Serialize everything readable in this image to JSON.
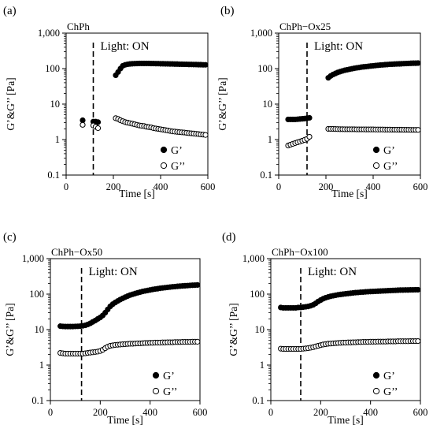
{
  "panels": [
    {
      "letter": "(a)",
      "sample": "ChPh",
      "annotation": "Light: ON",
      "chart_data": {
        "type": "scatter",
        "title": "ChPh",
        "xlabel": "Time [s]",
        "ylabel": "G’&G’’ [Pa]",
        "xlim": [
          0,
          600
        ],
        "ylim": [
          0.1,
          1000
        ],
        "yscale": "log",
        "grid": false,
        "legend_position": "bottom-right",
        "light_on_time": 115,
        "x_ticks": [
          "0",
          "200",
          "400",
          "600"
        ],
        "y_ticks": [
          "0.1",
          "1",
          "10",
          "100",
          "1,000"
        ],
        "series": [
          {
            "name": "G’",
            "marker": "filled",
            "x": [
              70,
              115,
              125,
              135,
              210,
              220,
              230,
              240,
              250,
              260,
              270,
              280,
              290,
              300,
              310,
              320,
              330,
              340,
              350,
              360,
              370,
              380,
              390,
              400,
              410,
              420,
              430,
              440,
              450,
              460,
              470,
              480,
              490,
              500,
              510,
              520,
              530,
              540,
              550,
              560,
              570,
              580,
              590
            ],
            "y": [
              3.5,
              3.2,
              3.2,
              3.1,
              65,
              80,
              100,
              120,
              128,
              132,
              135,
              137,
              138,
              139,
              140,
              140,
              140,
              140,
              140,
              139,
              139,
              138,
              138,
              137,
              137,
              136,
              136,
              135,
              135,
              134,
              134,
              133,
              133,
              132,
              132,
              131,
              131,
              130,
              130,
              129,
              129,
              128,
              128
            ]
          },
          {
            "name": "G’’",
            "marker": "open",
            "x": [
              70,
              115,
              125,
              135,
              210,
              220,
              230,
              240,
              250,
              260,
              270,
              280,
              290,
              300,
              310,
              320,
              330,
              340,
              350,
              360,
              370,
              380,
              390,
              400,
              410,
              420,
              430,
              440,
              450,
              460,
              470,
              480,
              490,
              500,
              510,
              520,
              530,
              540,
              550,
              560,
              570,
              580,
              590
            ],
            "y": [
              2.6,
              2.5,
              2.3,
              2.1,
              4.0,
              3.8,
              3.5,
              3.3,
              3.1,
              3.0,
              2.9,
              2.8,
              2.7,
              2.6,
              2.5,
              2.45,
              2.4,
              2.3,
              2.25,
              2.2,
              2.1,
              2.05,
              2.0,
              1.95,
              1.9,
              1.85,
              1.8,
              1.75,
              1.7,
              1.68,
              1.65,
              1.62,
              1.6,
              1.58,
              1.55,
              1.52,
              1.5,
              1.48,
              1.45,
              1.43,
              1.4,
              1.38,
              1.35
            ]
          }
        ]
      }
    },
    {
      "letter": "(b)",
      "sample": "ChPh−Ox25",
      "annotation": "Light: ON",
      "chart_data": {
        "type": "scatter",
        "title": "ChPh−Ox25",
        "xlabel": "Time [s]",
        "ylabel": "G’&G’’ [Pa]",
        "xlim": [
          0,
          600
        ],
        "ylim": [
          0.1,
          1000
        ],
        "yscale": "log",
        "grid": false,
        "legend_position": "bottom-right",
        "light_on_time": 120,
        "x_ticks": [
          "0",
          "200",
          "400",
          "600"
        ],
        "y_ticks": [
          "0.1",
          "1",
          "10",
          "100",
          "1,000"
        ],
        "series": [
          {
            "name": "G’",
            "marker": "filled",
            "x": [
              40,
              50,
              60,
              70,
              80,
              90,
              100,
              110,
              120,
              130,
              210,
              220,
              230,
              240,
              250,
              260,
              270,
              280,
              290,
              300,
              310,
              320,
              330,
              340,
              350,
              360,
              370,
              380,
              390,
              400,
              410,
              420,
              430,
              440,
              450,
              460,
              470,
              480,
              490,
              500,
              510,
              520,
              530,
              540,
              550,
              560,
              570,
              580,
              590
            ],
            "y": [
              3.7,
              3.7,
              3.7,
              3.7,
              3.75,
              3.8,
              3.85,
              3.9,
              4.0,
              4.1,
              55,
              62,
              68,
              73,
              78,
              82,
              86,
              90,
              93,
              96,
              99,
              102,
              105,
              107,
              110,
              112,
              114,
              116,
              118,
              120,
              122,
              124,
              126,
              127,
              129,
              130,
              132,
              133,
              134,
              135,
              136,
              137,
              138,
              139,
              140,
              141,
              142,
              142,
              143
            ]
          },
          {
            "name": "G’’",
            "marker": "open",
            "x": [
              40,
              50,
              60,
              70,
              80,
              90,
              100,
              110,
              120,
              130,
              210,
              220,
              230,
              240,
              250,
              260,
              270,
              280,
              290,
              300,
              310,
              320,
              330,
              340,
              350,
              360,
              370,
              380,
              390,
              400,
              410,
              420,
              430,
              440,
              450,
              460,
              470,
              480,
              490,
              500,
              510,
              520,
              530,
              540,
              550,
              560,
              570,
              580,
              590
            ],
            "y": [
              0.68,
              0.72,
              0.76,
              0.8,
              0.84,
              0.88,
              0.93,
              0.98,
              1.05,
              1.2,
              2.0,
              2.0,
              2.0,
              1.98,
              1.97,
              1.96,
              1.96,
              1.95,
              1.95,
              1.95,
              1.95,
              1.95,
              1.94,
              1.94,
              1.94,
              1.94,
              1.93,
              1.93,
              1.93,
              1.93,
              1.92,
              1.92,
              1.92,
              1.92,
              1.91,
              1.91,
              1.91,
              1.9,
              1.9,
              1.9,
              1.9,
              1.9,
              1.89,
              1.89,
              1.89,
              1.88,
              1.88,
              1.88,
              1.88
            ]
          }
        ]
      }
    },
    {
      "letter": "(c)",
      "sample": "ChPh−Ox50",
      "annotation": "Light: ON",
      "chart_data": {
        "type": "scatter",
        "title": "ChPh−Ox50",
        "xlabel": "Time [s]",
        "ylabel": "G’&G’’ [Pa]",
        "xlim": [
          0,
          600
        ],
        "ylim": [
          0.1,
          1000
        ],
        "yscale": "log",
        "grid": false,
        "legend_position": "bottom-right",
        "light_on_time": 125,
        "x_ticks": [
          "0",
          "200",
          "400",
          "600"
        ],
        "y_ticks": [
          "0.1",
          "1",
          "10",
          "100",
          "1,000"
        ],
        "series": [
          {
            "name": "G’",
            "marker": "filled",
            "x": [
              40,
              50,
              60,
              70,
              80,
              90,
              100,
              110,
              120,
              130,
              140,
              150,
              160,
              170,
              180,
              190,
              200,
              210,
              220,
              230,
              240,
              250,
              260,
              270,
              280,
              290,
              300,
              310,
              320,
              330,
              340,
              350,
              360,
              370,
              380,
              390,
              400,
              410,
              420,
              430,
              440,
              450,
              460,
              470,
              480,
              490,
              500,
              510,
              520,
              530,
              540,
              550,
              560,
              570,
              580,
              590
            ],
            "y": [
              12.5,
              12.3,
              12.2,
              12.2,
              12.2,
              12.2,
              12.3,
              12.4,
              12.5,
              12.8,
              13.2,
              14,
              15,
              16.5,
              18,
              20,
              22,
              25,
              30,
              37,
              45,
              52,
              58,
              64,
              70,
              76,
              82,
              88,
              94,
              99,
              104,
              109,
              114,
              119,
              123,
              127,
              131,
              135,
              139,
              142,
              146,
              149,
              152,
              155,
              158,
              161,
              163,
              166,
              168,
              170,
              172,
              174,
              176,
              178,
              179,
              181
            ]
          },
          {
            "name": "G’’",
            "marker": "open",
            "x": [
              40,
              50,
              60,
              70,
              80,
              90,
              100,
              110,
              120,
              130,
              140,
              150,
              160,
              170,
              180,
              190,
              200,
              210,
              220,
              230,
              240,
              250,
              260,
              270,
              280,
              290,
              300,
              310,
              320,
              330,
              340,
              350,
              360,
              370,
              380,
              390,
              400,
              410,
              420,
              430,
              440,
              450,
              460,
              470,
              480,
              490,
              500,
              510,
              520,
              530,
              540,
              550,
              560,
              570,
              580,
              590
            ],
            "y": [
              2.2,
              2.15,
              2.1,
              2.1,
              2.1,
              2.1,
              2.1,
              2.1,
              2.1,
              2.1,
              2.15,
              2.2,
              2.25,
              2.3,
              2.35,
              2.4,
              2.5,
              2.7,
              3.0,
              3.3,
              3.5,
              3.6,
              3.7,
              3.75,
              3.8,
              3.85,
              3.9,
              3.95,
              4.0,
              4.0,
              4.05,
              4.1,
              4.1,
              4.15,
              4.2,
              4.2,
              4.25,
              4.25,
              4.3,
              4.3,
              4.3,
              4.35,
              4.35,
              4.4,
              4.4,
              4.4,
              4.45,
              4.45,
              4.45,
              4.5,
              4.5,
              4.5,
              4.5,
              4.55,
              4.55,
              4.55
            ]
          }
        ]
      }
    },
    {
      "letter": "(d)",
      "sample": "ChPh−Ox100",
      "annotation": "Light: ON",
      "chart_data": {
        "type": "scatter",
        "title": "ChPh−Ox100",
        "xlabel": "Time [s]",
        "ylabel": "G’&G’’ [Pa]",
        "xlim": [
          0,
          600
        ],
        "ylim": [
          0.1,
          1000
        ],
        "yscale": "log",
        "grid": false,
        "legend_position": "bottom-right",
        "light_on_time": 120,
        "x_ticks": [
          "0",
          "200",
          "400",
          "600"
        ],
        "y_ticks": [
          "0.1",
          "1",
          "10",
          "100",
          "1,000"
        ],
        "series": [
          {
            "name": "G’",
            "marker": "filled",
            "x": [
              40,
              50,
              60,
              70,
              80,
              90,
              100,
              110,
              120,
              130,
              140,
              150,
              160,
              170,
              180,
              190,
              200,
              210,
              220,
              230,
              240,
              250,
              260,
              270,
              280,
              290,
              300,
              310,
              320,
              330,
              340,
              350,
              360,
              370,
              380,
              390,
              400,
              410,
              420,
              430,
              440,
              450,
              460,
              470,
              480,
              490,
              500,
              510,
              520,
              530,
              540,
              550,
              560,
              570,
              580,
              590
            ],
            "y": [
              42,
              41,
              41,
              41,
              41,
              41,
              41,
              42,
              42,
              43,
              44,
              45,
              47,
              50,
              55,
              62,
              68,
              74,
              79,
              83,
              87,
              90,
              93,
              96,
              98,
              100,
              102,
              104,
              106,
              108,
              110,
              111,
              113,
              114,
              116,
              117,
              118,
              119,
              120,
              121,
              122,
              123,
              124,
              125,
              126,
              127,
              128,
              129,
              130,
              130,
              131,
              131,
              132,
              132,
              133,
              133
            ]
          },
          {
            "name": "G’’",
            "marker": "open",
            "x": [
              40,
              50,
              60,
              70,
              80,
              90,
              100,
              110,
              120,
              130,
              140,
              150,
              160,
              170,
              180,
              190,
              200,
              210,
              220,
              230,
              240,
              250,
              260,
              270,
              280,
              290,
              300,
              310,
              320,
              330,
              340,
              350,
              360,
              370,
              380,
              390,
              400,
              410,
              420,
              430,
              440,
              450,
              460,
              470,
              480,
              490,
              500,
              510,
              520,
              530,
              540,
              550,
              560,
              570,
              580,
              590
            ],
            "y": [
              2.9,
              2.85,
              2.85,
              2.85,
              2.85,
              2.85,
              2.85,
              2.85,
              2.85,
              2.9,
              2.95,
              3.0,
              3.1,
              3.2,
              3.35,
              3.5,
              3.65,
              3.8,
              3.9,
              4.0,
              4.05,
              4.1,
              4.15,
              4.2,
              4.25,
              4.3,
              4.3,
              4.35,
              4.35,
              4.4,
              4.4,
              4.45,
              4.45,
              4.5,
              4.5,
              4.5,
              4.55,
              4.55,
              4.55,
              4.6,
              4.6,
              4.6,
              4.6,
              4.65,
              4.65,
              4.65,
              4.65,
              4.7,
              4.7,
              4.7,
              4.7,
              4.7,
              4.75,
              4.75,
              4.75,
              4.75
            ]
          }
        ]
      }
    }
  ]
}
